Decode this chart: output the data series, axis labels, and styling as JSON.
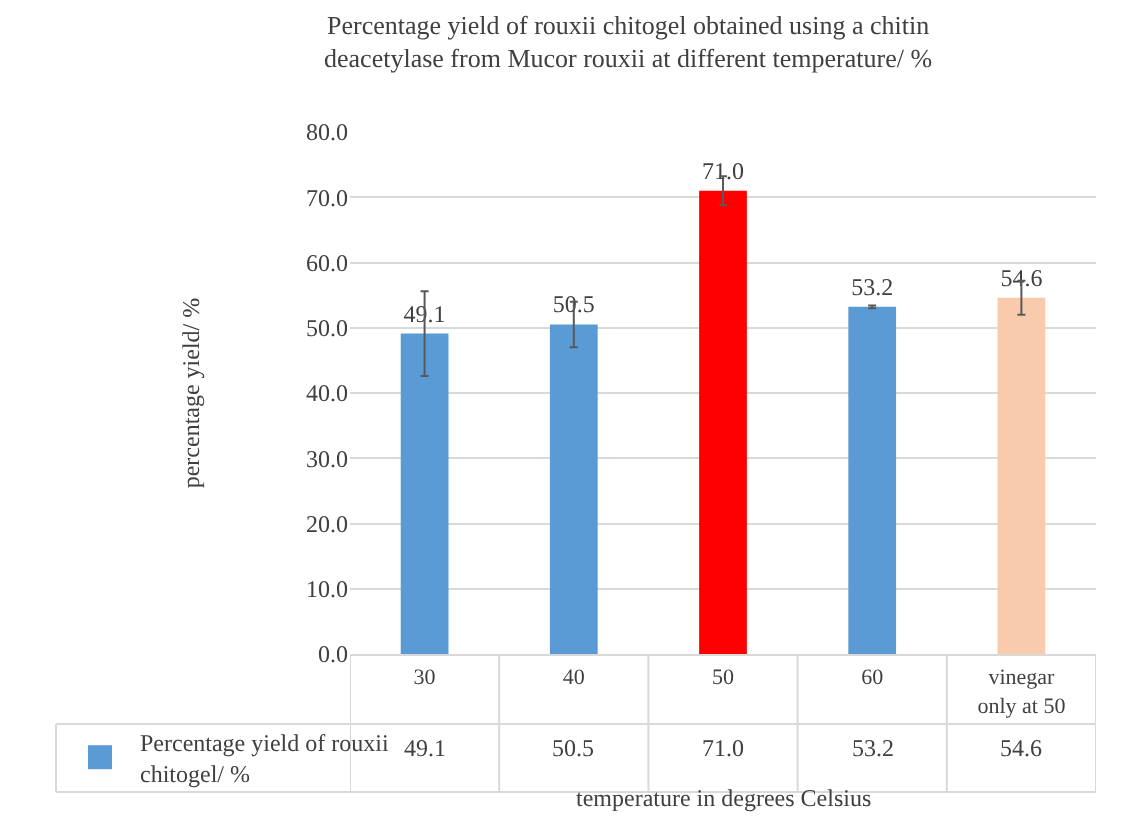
{
  "chart_data": {
    "type": "bar",
    "title": "Percentage yield of rouxii chitogel obtained using a chitin\ndeacetylase from Mucor rouxii at different temperature/ %",
    "xlabel": "temperature in degrees Celsius",
    "ylabel": "percentage yield/ %",
    "categories": [
      "30",
      "40",
      "50",
      "60",
      "vinegar\nonly at 50"
    ],
    "series": [
      {
        "name": "Percentage yield of rouxii\nchitogel/ %",
        "colors": [
          "#5b9bd5",
          "#5b9bd5",
          "#ff0000",
          "#5b9bd5",
          "#f8cbad"
        ],
        "values": [
          49.1,
          50.5,
          71.0,
          53.2,
          54.6
        ],
        "value_labels": [
          "49.1",
          "50.5",
          "71.0",
          "53.2",
          "54.6"
        ],
        "errors": [
          6.5,
          3.5,
          2.2,
          0.2,
          2.6
        ]
      }
    ],
    "ylim": [
      0,
      80
    ],
    "yticks": [
      {
        "value": 0,
        "label": "0.0"
      },
      {
        "value": 10,
        "label": "10.0"
      },
      {
        "value": 20,
        "label": "20.0"
      },
      {
        "value": 30,
        "label": "30.0"
      },
      {
        "value": 40,
        "label": "40.0"
      },
      {
        "value": 50,
        "label": "50.0"
      },
      {
        "value": 60,
        "label": "60.0"
      },
      {
        "value": 70,
        "label": "70.0"
      },
      {
        "value": 80,
        "label": "80.0"
      }
    ],
    "grid": "y",
    "legend": "bottom left"
  }
}
